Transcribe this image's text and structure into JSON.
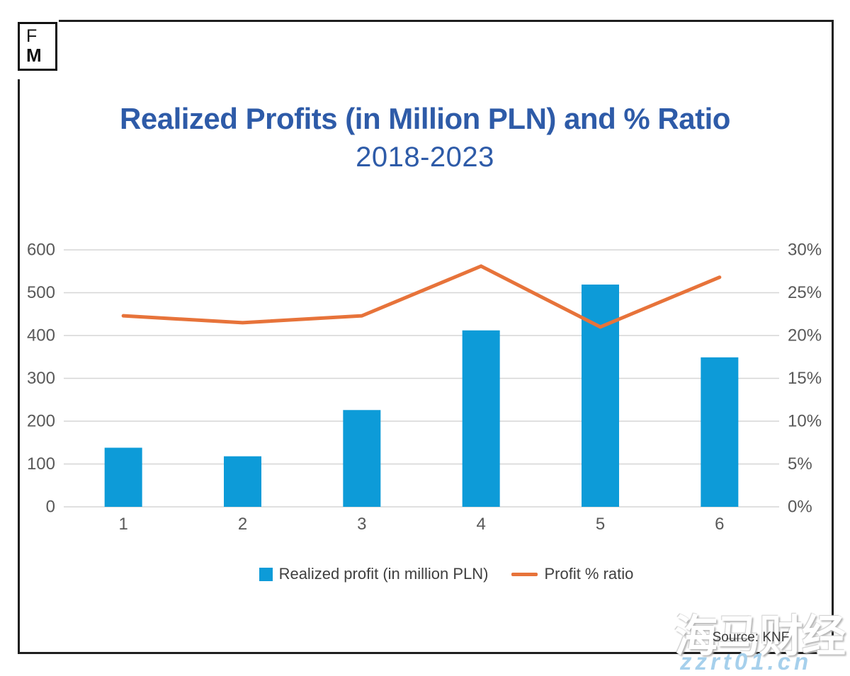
{
  "logo": {
    "line1": "F",
    "line2": "M"
  },
  "header": {
    "title": "Realized Profits (in Million PLN) and % Ratio",
    "subtitle": "2018-2023",
    "title_color": "#2e5ba8"
  },
  "chart_data": {
    "type": "bar",
    "subtype": "combo-bar-line",
    "categories": [
      "1",
      "2",
      "3",
      "4",
      "5",
      "6"
    ],
    "series": [
      {
        "name": "Realized profit (in million PLN)",
        "type": "bar",
        "axis": "left",
        "color": "#0d9bd8",
        "values": [
          138,
          118,
          226,
          412,
          519,
          349
        ]
      },
      {
        "name": "Profit % ratio",
        "type": "line",
        "axis": "right",
        "color": "#e7733a",
        "values": [
          22.3,
          21.5,
          22.3,
          28.1,
          21.0,
          26.8
        ]
      }
    ],
    "title": "Realized Profits (in Million PLN) and % Ratio 2018-2023",
    "xlabel": "",
    "ylabel_left": "",
    "ylabel_right": "",
    "left_axis": {
      "min": 0,
      "max": 600,
      "ticks": [
        "0",
        "100",
        "200",
        "300",
        "400",
        "500",
        "600"
      ]
    },
    "right_axis": {
      "min": 0,
      "max": 30,
      "ticks": [
        "0%",
        "5%",
        "10%",
        "15%",
        "20%",
        "25%",
        "30%"
      ]
    },
    "grid": true,
    "gridline_color": "#d6d6d6",
    "legend_position": "bottom"
  },
  "legend": {
    "bar_label": "Realized profit (in million PLN)",
    "line_label": "Profit % ratio"
  },
  "source": {
    "text": "Source: KNF"
  },
  "watermark": {
    "cn": "海马财经",
    "url": "zzrt01.cn"
  }
}
